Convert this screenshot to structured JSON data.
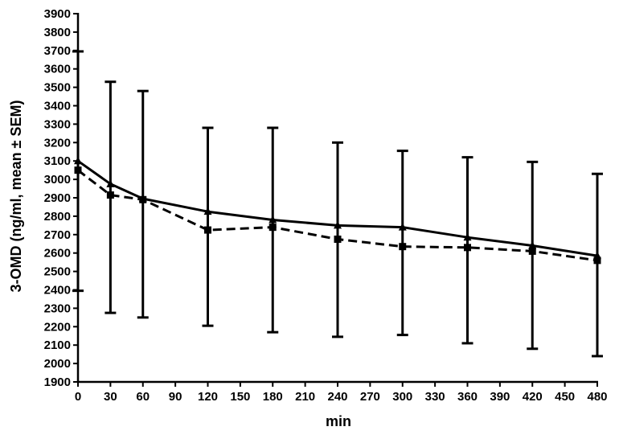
{
  "chart_data": {
    "type": "line",
    "title": "",
    "xlabel": "min",
    "ylabel": "3-OMD (ng/ml, mean ± SEM)",
    "x_ticks": [
      0,
      30,
      60,
      90,
      120,
      150,
      180,
      210,
      240,
      270,
      300,
      330,
      360,
      390,
      420,
      450,
      480
    ],
    "y_ticks": [
      1900,
      2000,
      2100,
      2200,
      2300,
      2400,
      2500,
      2600,
      2700,
      2800,
      2900,
      3000,
      3100,
      3200,
      3300,
      3400,
      3500,
      3600,
      3700,
      3800,
      3900
    ],
    "xlim": [
      0,
      480
    ],
    "ylim": [
      1900,
      3900
    ],
    "grid": false,
    "legend": "none",
    "series": [
      {
        "style": "solid",
        "marker": "triangle",
        "color": "#000000",
        "x": [
          0,
          30,
          60,
          120,
          180,
          240,
          300,
          360,
          420,
          480
        ],
        "y": [
          3100,
          2975,
          2895,
          2825,
          2780,
          2750,
          2740,
          2685,
          2640,
          2585
        ]
      },
      {
        "style": "dashed",
        "marker": "square",
        "color": "#000000",
        "x": [
          0,
          30,
          60,
          120,
          180,
          240,
          300,
          360,
          420,
          480
        ],
        "y": [
          3050,
          2915,
          2890,
          2725,
          2740,
          2675,
          2635,
          2630,
          2610,
          2560
        ]
      }
    ],
    "error_bars": [
      {
        "x": 0,
        "low": 2395,
        "high": 3695
      },
      {
        "x": 30,
        "low": 2275,
        "high": 3530
      },
      {
        "x": 60,
        "low": 2250,
        "high": 3480
      },
      {
        "x": 120,
        "low": 2205,
        "high": 3280
      },
      {
        "x": 180,
        "low": 2170,
        "high": 3280
      },
      {
        "x": 240,
        "low": 2145,
        "high": 3200
      },
      {
        "x": 300,
        "low": 2155,
        "high": 3155
      },
      {
        "x": 360,
        "low": 2110,
        "high": 3120
      },
      {
        "x": 420,
        "low": 2080,
        "high": 3095
      },
      {
        "x": 480,
        "low": 2040,
        "high": 3030
      }
    ]
  }
}
